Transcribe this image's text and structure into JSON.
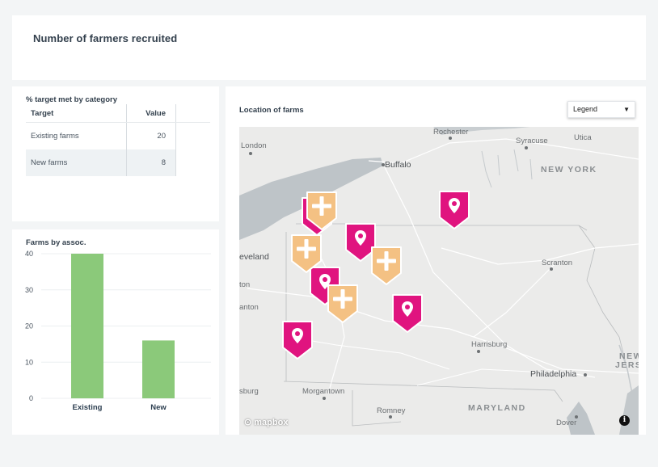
{
  "header": {
    "title": "Number of farmers recruited"
  },
  "target_table": {
    "title": "% target met by category",
    "columns": [
      "Target",
      "Value"
    ],
    "rows": [
      {
        "target": "Existing farms",
        "value": "20"
      },
      {
        "target": "New farms",
        "value": "8"
      }
    ]
  },
  "bar_chart": {
    "title": "Farms by assoc.",
    "chart_data": {
      "type": "bar",
      "title": "Farms by assoc.",
      "categories": [
        "Existing",
        "New"
      ],
      "values": [
        40,
        16
      ],
      "yticks": [
        0,
        10,
        20,
        30,
        40
      ],
      "ylim": [
        0,
        40
      ],
      "grid": true,
      "color": "#8bc97a"
    }
  },
  "map": {
    "title": "Location of farms",
    "legend_label": "Legend",
    "legend_caret": "▼",
    "attribution": "mapbox",
    "info_label": "i",
    "colors": {
      "new_farm": "#e0147f",
      "existing_farm": "#f4c183",
      "water": "#bec4c8",
      "land": "#ebebea"
    },
    "labels": {
      "rochester": "Rochester",
      "syracuse": "Syracuse",
      "utica": "Utica",
      "london": "London",
      "buffalo": "Buffalo",
      "new_york": "NEW YORK",
      "cleveland": "eveland",
      "ton": "ton",
      "anton": "anton",
      "scranton": "Scranton",
      "harrisburg": "Harrisburg",
      "new_jersey_1": "NEW",
      "new_jersey_2": "JERSE",
      "philadelphia": "Philadelphia",
      "morgantown": "Morgantown",
      "romney": "Romney",
      "maryland": "MARYLAND",
      "dover": "Dover",
      "sburg": "sburg"
    }
  }
}
